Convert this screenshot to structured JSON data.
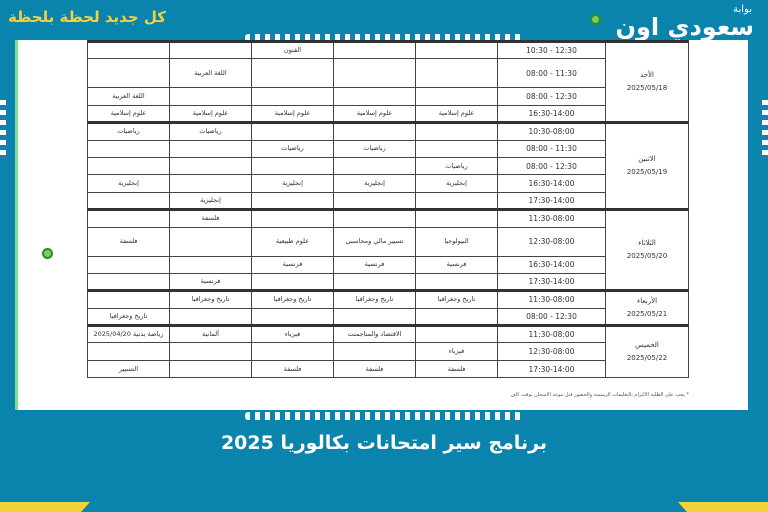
{
  "header": {
    "slogan": "كل جديد لحظة بلحظة",
    "logo_small": "بوابة",
    "logo_big": "سعودي اون"
  },
  "schedule": [
    {
      "day": "الأحد",
      "date": "2025/05/18",
      "slots": [
        {
          "time": "12:30 - 10:30",
          "cells": [
            "",
            "",
            "الفنون",
            "",
            ""
          ]
        },
        {
          "time": "11:30 - 08:00",
          "cells": [
            "",
            "",
            "",
            "اللغة العربية",
            ""
          ]
        },
        {
          "time": "12:30 - 08:00",
          "cells": [
            "",
            "",
            "",
            "",
            "اللغة العربية"
          ]
        },
        {
          "time": "16:30-14:00",
          "cells": [
            "علوم إسلامية",
            "علوم إسلامية",
            "علوم إسلامية",
            "علوم إسلامية",
            "علوم إسلامية"
          ]
        }
      ]
    },
    {
      "day": "الاثنين",
      "date": "2025/05/19",
      "slots": [
        {
          "time": "10:30-08:00",
          "cells": [
            "",
            "",
            "",
            "رياضيات",
            "رياضيات"
          ]
        },
        {
          "time": "11:30 - 08:00",
          "cells": [
            "",
            "رياضيات",
            "رياضيات",
            "",
            ""
          ]
        },
        {
          "time": "12:30 - 08:00",
          "cells": [
            "رياضيات",
            "",
            "",
            "",
            ""
          ]
        },
        {
          "time": "16:30-14:00",
          "cells": [
            "إنجليزية",
            "إنجليزية",
            "إنجليزية",
            "",
            "إنجليزية"
          ]
        },
        {
          "time": "17:30-14:00",
          "cells": [
            "",
            "",
            "",
            "إنجليزية",
            ""
          ]
        }
      ]
    },
    {
      "day": "الثلاثاء",
      "date": "2025/05/20",
      "slots": [
        {
          "time": "11:30-08:00",
          "cells": [
            "",
            "",
            "",
            "فلسفة",
            ""
          ]
        },
        {
          "time": "12:30-08:00",
          "cells": [
            "البيولوجيا",
            "تسيير مالي ومحاسبي",
            "علوم طبيعية",
            "",
            "فلسفة"
          ]
        },
        {
          "time": "16:30-14:00",
          "cells": [
            "فرنسية",
            "فرنسية",
            "فرنسية",
            "",
            ""
          ]
        },
        {
          "time": "17:30-14:00",
          "cells": [
            "",
            "",
            "",
            "فرنسية",
            ""
          ]
        }
      ]
    },
    {
      "day": "الأربعاء",
      "date": "2025/05/21",
      "slots": [
        {
          "time": "11:30-08:00",
          "cells": [
            "تاريخ وجغرافيا",
            "تاريخ وجغرافيا",
            "تاريخ وجغرافيا",
            "تاريخ وجغرافيا",
            ""
          ]
        },
        {
          "time": "12:30 - 08:00",
          "cells": [
            "",
            "",
            "",
            "",
            "تاريخ وجغرافيا"
          ]
        }
      ]
    },
    {
      "day": "الخميس",
      "date": "2025/05/22",
      "slots": [
        {
          "time": "11:30-08:00",
          "cells": [
            "",
            "الاقتصاد والمناجمنت",
            "فيزياء",
            "ألمانية",
            "رياضة بدنية 2025/04/20"
          ]
        },
        {
          "time": "12:30-08:00",
          "cells": [
            "فيزياء",
            "",
            "",
            "",
            ""
          ]
        },
        {
          "time": "17:30-14:00",
          "cells": [
            "فلسفة",
            "فلسفة",
            "فلسفة",
            "",
            "التسيير"
          ]
        }
      ]
    }
  ],
  "footnote": "* يجب على الطلبة الالتزام بالتعليمات الرسمية والحضور قبل موعد الامتحان بوقت كاف",
  "caption": "برنامج سير امتحانات بكالوريا 2025",
  "colors": {
    "background": "#0b84ad",
    "accent": "#f5d23c"
  }
}
